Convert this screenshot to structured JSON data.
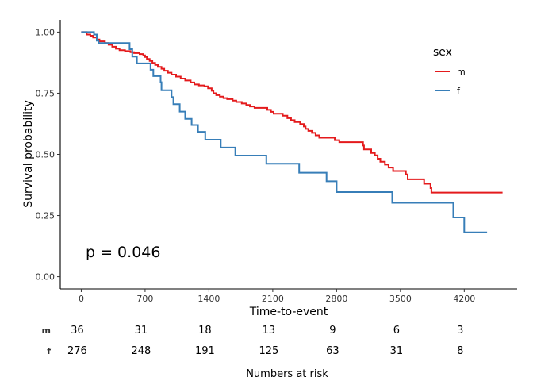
{
  "chart_data": {
    "type": "line",
    "title": "",
    "xlabel": "Time-to-event",
    "ylabel": "Survival probability",
    "xlim": [
      -230,
      4780
    ],
    "ylim": [
      -0.05,
      1.05
    ],
    "x_ticks": [
      0,
      700,
      1400,
      2100,
      2800,
      3500,
      4200
    ],
    "x_tick_labels": [
      "0",
      "700",
      "1400",
      "2100",
      "2800",
      "3500",
      "4200"
    ],
    "y_ticks": [
      0,
      0.25,
      0.5,
      0.75,
      1.0
    ],
    "y_tick_labels": [
      "0.00",
      "0.25",
      "0.50",
      "0.75",
      "1.00"
    ],
    "grid": false,
    "legend": {
      "title": "sex",
      "placement": "top-right"
    },
    "annotation": "p = 0.046",
    "series": [
      {
        "name": "m",
        "color": "#E41A1C",
        "points": [
          [
            0,
            1.0
          ],
          [
            60,
            0.99
          ],
          [
            100,
            0.985
          ],
          [
            130,
            0.978
          ],
          [
            170,
            0.97
          ],
          [
            200,
            0.962
          ],
          [
            260,
            0.955
          ],
          [
            300,
            0.948
          ],
          [
            340,
            0.94
          ],
          [
            380,
            0.932
          ],
          [
            420,
            0.926
          ],
          [
            480,
            0.922
          ],
          [
            540,
            0.918
          ],
          [
            580,
            0.914
          ],
          [
            640,
            0.91
          ],
          [
            680,
            0.905
          ],
          [
            700,
            0.898
          ],
          [
            720,
            0.89
          ],
          [
            750,
            0.882
          ],
          [
            780,
            0.874
          ],
          [
            810,
            0.866
          ],
          [
            840,
            0.858
          ],
          [
            880,
            0.85
          ],
          [
            910,
            0.842
          ],
          [
            950,
            0.834
          ],
          [
            990,
            0.826
          ],
          [
            1040,
            0.818
          ],
          [
            1090,
            0.81
          ],
          [
            1140,
            0.802
          ],
          [
            1200,
            0.794
          ],
          [
            1240,
            0.786
          ],
          [
            1290,
            0.782
          ],
          [
            1350,
            0.778
          ],
          [
            1390,
            0.77
          ],
          [
            1430,
            0.76
          ],
          [
            1450,
            0.75
          ],
          [
            1480,
            0.742
          ],
          [
            1520,
            0.736
          ],
          [
            1560,
            0.73
          ],
          [
            1600,
            0.726
          ],
          [
            1660,
            0.72
          ],
          [
            1700,
            0.714
          ],
          [
            1760,
            0.708
          ],
          [
            1810,
            0.702
          ],
          [
            1850,
            0.696
          ],
          [
            1900,
            0.69
          ],
          [
            2040,
            0.682
          ],
          [
            2080,
            0.674
          ],
          [
            2110,
            0.666
          ],
          [
            2210,
            0.658
          ],
          [
            2260,
            0.648
          ],
          [
            2300,
            0.64
          ],
          [
            2340,
            0.632
          ],
          [
            2400,
            0.624
          ],
          [
            2440,
            0.614
          ],
          [
            2460,
            0.604
          ],
          [
            2490,
            0.596
          ],
          [
            2530,
            0.588
          ],
          [
            2570,
            0.578
          ],
          [
            2610,
            0.568
          ],
          [
            2780,
            0.558
          ],
          [
            2830,
            0.55
          ],
          [
            3090,
            0.536
          ],
          [
            3100,
            0.52
          ],
          [
            3180,
            0.506
          ],
          [
            3220,
            0.496
          ],
          [
            3250,
            0.482
          ],
          [
            3280,
            0.47
          ],
          [
            3330,
            0.458
          ],
          [
            3370,
            0.446
          ],
          [
            3420,
            0.432
          ],
          [
            3560,
            0.418
          ],
          [
            3580,
            0.398
          ],
          [
            3760,
            0.38
          ],
          [
            3830,
            0.362
          ],
          [
            3840,
            0.344
          ],
          [
            4620,
            0.344
          ]
        ]
      },
      {
        "name": "f",
        "color": "#377EB8",
        "points": [
          [
            0,
            1.0
          ],
          [
            140,
            0.99
          ],
          [
            170,
            0.965
          ],
          [
            190,
            0.955
          ],
          [
            530,
            0.93
          ],
          [
            560,
            0.9
          ],
          [
            610,
            0.872
          ],
          [
            760,
            0.846
          ],
          [
            790,
            0.82
          ],
          [
            870,
            0.795
          ],
          [
            880,
            0.762
          ],
          [
            990,
            0.734
          ],
          [
            1010,
            0.705
          ],
          [
            1080,
            0.675
          ],
          [
            1140,
            0.645
          ],
          [
            1210,
            0.62
          ],
          [
            1280,
            0.592
          ],
          [
            1360,
            0.56
          ],
          [
            1530,
            0.528
          ],
          [
            1690,
            0.495
          ],
          [
            2030,
            0.462
          ],
          [
            2390,
            0.425
          ],
          [
            2690,
            0.39
          ],
          [
            2800,
            0.346
          ],
          [
            3410,
            0.302
          ],
          [
            4080,
            0.242
          ],
          [
            4200,
            0.181
          ],
          [
            4450,
            0.181
          ]
        ]
      }
    ],
    "risk_table": {
      "title": "Numbers at risk",
      "times": [
        0,
        700,
        1400,
        2100,
        2800,
        3500,
        4200
      ],
      "rows": [
        {
          "strata": "m",
          "counts": [
            "36",
            "31",
            "18",
            "13",
            "9",
            "6",
            "3"
          ]
        },
        {
          "strata": "f",
          "counts": [
            "276",
            "248",
            "191",
            "125",
            "63",
            "31",
            "8"
          ]
        }
      ]
    }
  }
}
